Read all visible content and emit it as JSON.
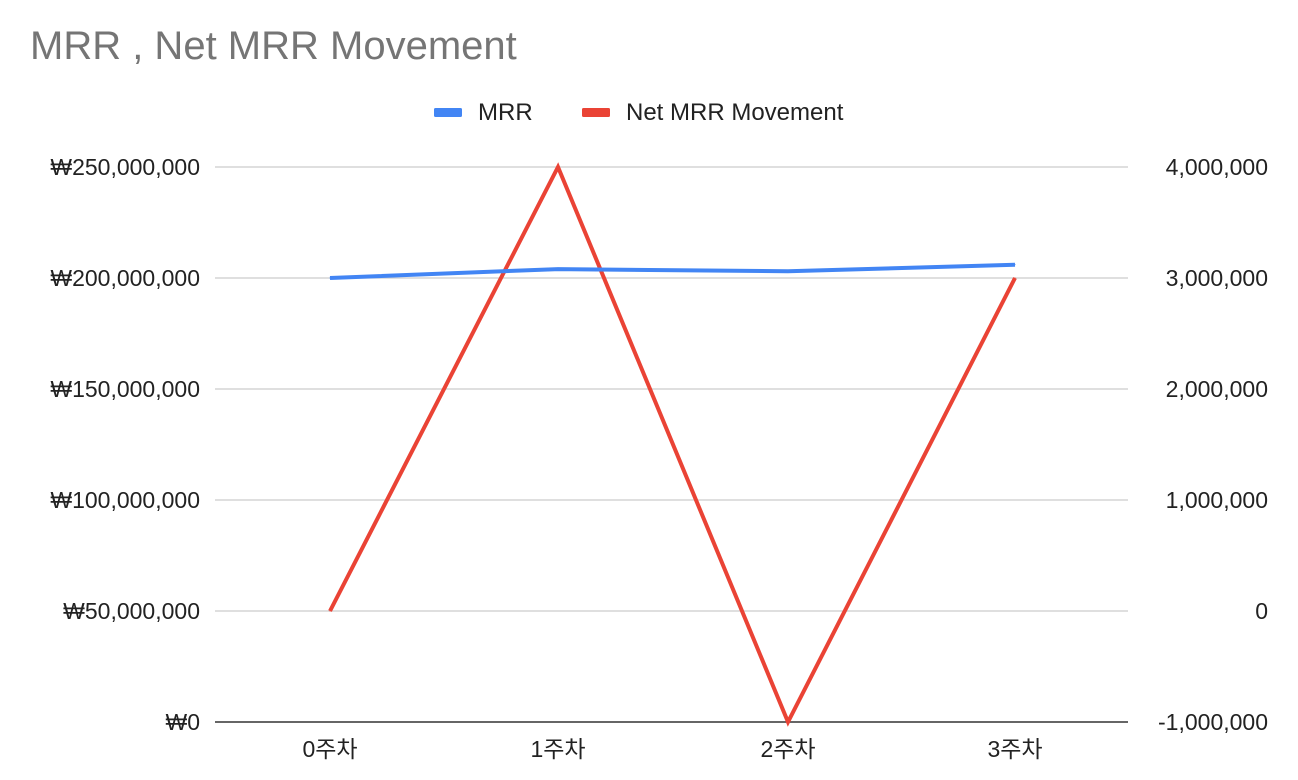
{
  "chart_data": {
    "type": "line",
    "title": "MRR , Net MRR Movement",
    "categories": [
      "0주차",
      "1주차",
      "2주차",
      "3주차"
    ],
    "series": [
      {
        "name": "MRR",
        "axis": "left",
        "color": "#4285f4",
        "values": [
          200000000,
          204000000,
          203000000,
          206000000
        ]
      },
      {
        "name": "Net MRR Movement",
        "axis": "right",
        "color": "#ea4335",
        "values": [
          0,
          4000000,
          -1000000,
          3000000
        ]
      }
    ],
    "y_left": {
      "min": 0,
      "max": 250000000,
      "ticks": [
        0,
        50000000,
        100000000,
        150000000,
        200000000,
        250000000
      ],
      "tick_labels": [
        "₩0",
        "₩50,000,000",
        "₩100,000,000",
        "₩150,000,000",
        "₩200,000,000",
        "₩250,000,000"
      ]
    },
    "y_right": {
      "min": -1000000,
      "max": 4000000,
      "ticks": [
        -1000000,
        0,
        1000000,
        2000000,
        3000000,
        4000000
      ],
      "tick_labels": [
        "-1,000,000",
        "0",
        "1,000,000",
        "2,000,000",
        "3,000,000",
        "4,000,000"
      ]
    },
    "grid": true,
    "legend_position": "top-center",
    "xlabel": "",
    "ylabel": ""
  }
}
